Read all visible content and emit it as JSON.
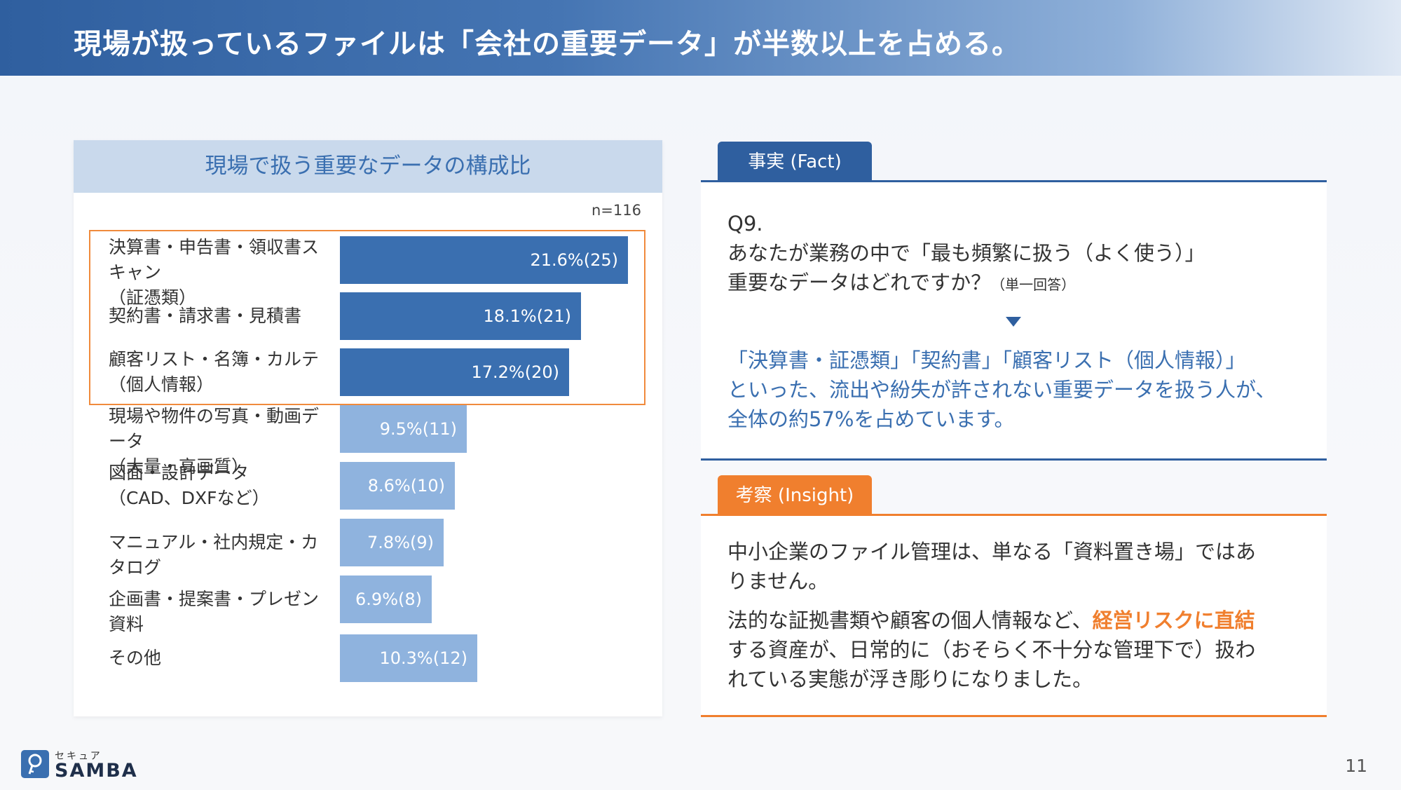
{
  "header": {
    "title": "現場が扱っているファイルは「会社の重要データ」が半数以上を占める。"
  },
  "chart_data": {
    "type": "bar",
    "orientation": "horizontal",
    "title": "現場で扱う重要なデータの構成比",
    "sample_size": "n=116",
    "categories": [
      [
        "決算書・申告書・領収書スキャン",
        "（証憑類）"
      ],
      [
        "契約書・請求書・見積書"
      ],
      [
        "顧客リスト・名簿・カルテ",
        "（個人情報）"
      ],
      [
        "現場や物件の写真・動画データ",
        "（大量・高画質）"
      ],
      [
        "図面・設計データ",
        "（CAD、DXFなど）"
      ],
      [
        "マニュアル・社内規定・カタログ"
      ],
      [
        "企画書・提案書・プレゼン資料"
      ],
      [
        "その他"
      ]
    ],
    "values": [
      21.6,
      18.1,
      17.2,
      9.5,
      8.6,
      7.8,
      6.9,
      10.3
    ],
    "counts": [
      25,
      21,
      20,
      11,
      10,
      9,
      8,
      12
    ],
    "value_labels": [
      "21.6%(25)",
      "18.1%(21)",
      "17.2%(20)",
      "9.5%(11)",
      "8.6%(10)",
      "7.8%(9)",
      "6.9%(8)",
      "10.3%(12)"
    ],
    "highlighted_indices": [
      0,
      1,
      2
    ],
    "colors": {
      "highlight": "#3a6fb0",
      "normal": "#8fb3de",
      "box": "#f08a3c"
    }
  },
  "fact": {
    "tab_label": "事実 (Fact)",
    "question_no": "Q9.",
    "question_line1": "あなたが業務の中で「最も頻繁に扱う（よく使う）」",
    "question_line2": "重要なデータはどれですか？",
    "question_note": "（単一回答）",
    "result_line1": "「決算書・証憑類」「契約書」「顧客リスト（個人情報）」",
    "result_line2": "といった、流出や紛失が許されない重要データを扱う人が、",
    "result_line3": "全体の約57%を占めています。"
  },
  "insight": {
    "tab_label": "考察 (Insight)",
    "line1": "中小企業のファイル管理は、単なる「資料置き場」ではあ",
    "line2": "りません。",
    "line3_pre": "法的な証拠書類や顧客の個人情報など、",
    "line3_highlight": "経営リスクに直結",
    "line4": "する資産が、日常的に（おそらく不十分な管理下で）扱わ",
    "line5": "れている実態が浮き彫りになりました。"
  },
  "logo": {
    "small": "セキュア",
    "name": "SAMBA"
  },
  "page_number": "11"
}
